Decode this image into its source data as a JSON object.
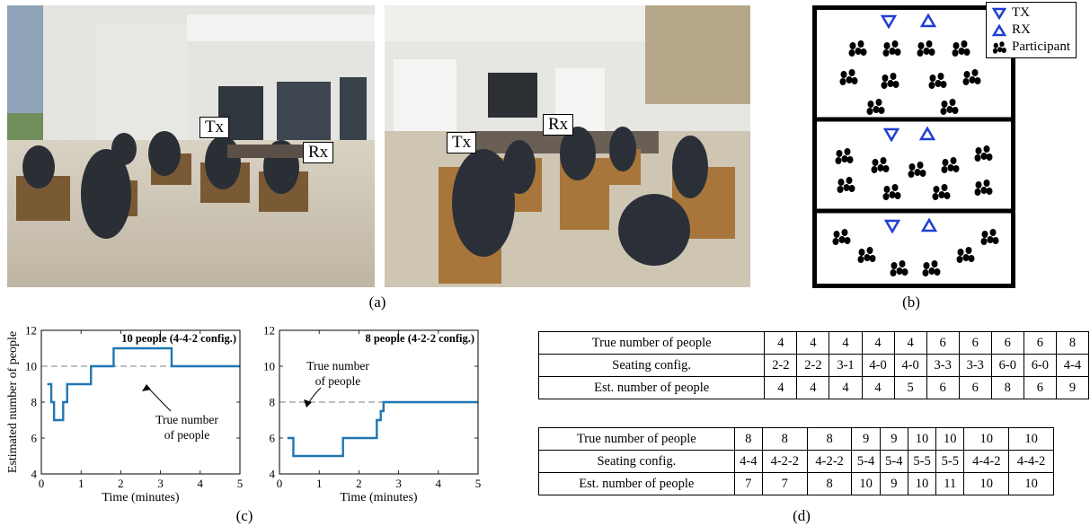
{
  "panel_labels": {
    "a": "(a)",
    "b": "(b)",
    "c": "(c)",
    "d": "(d)"
  },
  "photo_labels": {
    "left_tx": "Tx",
    "left_rx": "Rx",
    "right_tx": "Tx",
    "right_rx": "Rx"
  },
  "legend": {
    "tx": "TX",
    "rx": "RX",
    "participant": "Participant"
  },
  "colors": {
    "series": "#1f77b4",
    "tri": "#1f3fd1",
    "truth": "#999999"
  },
  "chart_data": [
    {
      "type": "line",
      "title": "10 people (4-4-2 config.)",
      "xlabel": "Time (minutes)",
      "ylabel": "Estimated number of people",
      "xlim": [
        0,
        5
      ],
      "ylim": [
        4,
        12
      ],
      "xticks": [
        "0",
        "1",
        "2",
        "3",
        "4",
        "5"
      ],
      "yticks": [
        "4",
        "6",
        "8",
        "10",
        "12"
      ],
      "true_value": 10,
      "annotation": [
        "True number",
        "of people"
      ],
      "x": [
        0.15,
        0.25,
        0.25,
        0.32,
        0.32,
        0.55,
        0.55,
        0.65,
        0.65,
        1.0,
        1.0,
        1.25,
        1.25,
        1.82,
        1.82,
        3.28,
        3.28,
        5.0
      ],
      "y": [
        9,
        9,
        8,
        8,
        7,
        7,
        8,
        8,
        9,
        9,
        9,
        9,
        10,
        10,
        11,
        11,
        10,
        10
      ]
    },
    {
      "type": "line",
      "title": "8 people (4-2-2 config.)",
      "xlabel": "Time (minutes)",
      "ylabel": "",
      "xlim": [
        0,
        5
      ],
      "ylim": [
        4,
        12
      ],
      "xticks": [
        "0",
        "1",
        "2",
        "3",
        "4",
        "5"
      ],
      "yticks": [
        "4",
        "6",
        "8",
        "10",
        "12"
      ],
      "true_value": 8,
      "annotation": [
        "True number",
        "of people"
      ],
      "x": [
        0.2,
        0.35,
        0.35,
        1.6,
        1.6,
        2.45,
        2.45,
        2.55,
        2.55,
        2.62,
        2.62,
        5.0
      ],
      "y": [
        6,
        6,
        5,
        5,
        6,
        6,
        7,
        7,
        7.5,
        7.5,
        8,
        8
      ]
    }
  ],
  "table1": [
    [
      "True number of people",
      "4",
      "4",
      "4",
      "4",
      "4",
      "6",
      "6",
      "6",
      "6",
      "8"
    ],
    [
      "Seating config.",
      "2-2",
      "2-2",
      "3-1",
      "4-0",
      "4-0",
      "3-3",
      "3-3",
      "6-0",
      "6-0",
      "4-4"
    ],
    [
      "Est. number of people",
      "4",
      "4",
      "4",
      "4",
      "5",
      "6",
      "6",
      "8",
      "6",
      "9"
    ]
  ],
  "table2": [
    [
      "True number of people",
      "8",
      "8",
      "8",
      "9",
      "9",
      "10",
      "10",
      "10",
      "10"
    ],
    [
      "Seating config.",
      "4-4",
      "4-2-2",
      "4-2-2",
      "5-4",
      "5-4",
      "5-5",
      "5-5",
      "4-4-2",
      "4-4-2"
    ],
    [
      "Est. number of people",
      "7",
      "7",
      "8",
      "10",
      "9",
      "10",
      "11",
      "10",
      "10"
    ]
  ]
}
